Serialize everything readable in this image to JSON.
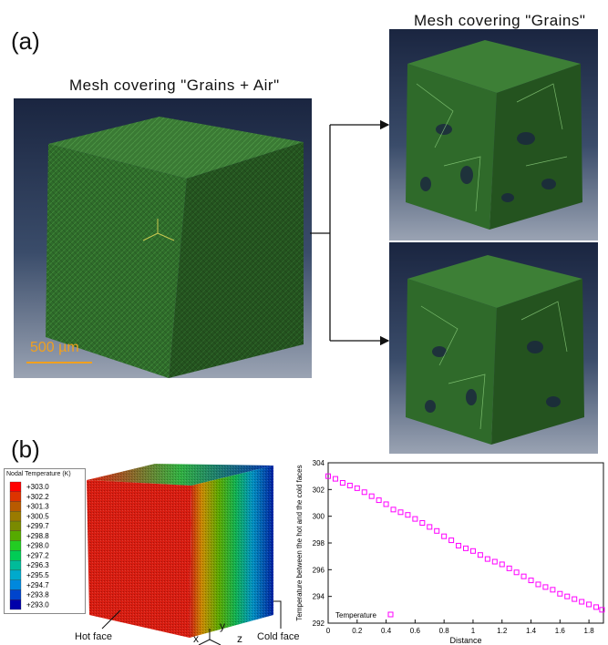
{
  "panel_a": {
    "label": "(a)",
    "left_caption": "Mesh covering \"Grains + Air\"",
    "right_caption": "Mesh covering \"Grains\"",
    "scale_bar": "500 µm",
    "colors": {
      "mesh": "#2e6a2a",
      "scale_bar": "#f0a020"
    }
  },
  "panel_b": {
    "label": "(b)",
    "legend": {
      "title": "Nodal Temperature (K)",
      "entries": [
        "+303.0",
        "+302.2",
        "+301.3",
        "+300.5",
        "+299.7",
        "+298.8",
        "+298.0",
        "+297.2",
        "+296.3",
        "+295.5",
        "+294.7",
        "+293.8",
        "+293.0"
      ],
      "colors": [
        "#ff0000",
        "#dd3300",
        "#b85a00",
        "#9a7a00",
        "#7a8a00",
        "#55aa00",
        "#22cc22",
        "#00cc55",
        "#00bb99",
        "#00aacc",
        "#0088dd",
        "#0044cc",
        "#0000aa"
      ]
    },
    "hot_face": "Hot face",
    "cold_face": "Cold face",
    "axes_labels": {
      "x": "x",
      "y": "y",
      "z": "z"
    }
  },
  "chart_data": {
    "type": "scatter",
    "title": "",
    "xlabel": "Distance",
    "ylabel": "Temperature between the hot and the cold faces",
    "xlim": [
      0,
      1.9
    ],
    "ylim": [
      292,
      304
    ],
    "xticks": [
      0,
      0.2,
      0.4,
      0.6,
      0.8,
      1,
      1.2,
      1.4,
      1.6,
      1.8
    ],
    "yticks": [
      292,
      294,
      296,
      298,
      300,
      302,
      304
    ],
    "legend": "Temperature",
    "legend_position": "bottom-left",
    "marker_color": "#ff00ff",
    "series": [
      {
        "name": "Temperature",
        "x": [
          0,
          0.05,
          0.1,
          0.15,
          0.2,
          0.25,
          0.3,
          0.35,
          0.4,
          0.45,
          0.5,
          0.55,
          0.6,
          0.65,
          0.7,
          0.75,
          0.8,
          0.85,
          0.9,
          0.95,
          1.0,
          1.05,
          1.1,
          1.15,
          1.2,
          1.25,
          1.3,
          1.35,
          1.4,
          1.45,
          1.5,
          1.55,
          1.6,
          1.65,
          1.7,
          1.75,
          1.8,
          1.85,
          1.89
        ],
        "y": [
          303.0,
          302.8,
          302.5,
          302.3,
          302.1,
          301.8,
          301.5,
          301.2,
          300.9,
          300.5,
          300.3,
          300.1,
          299.8,
          299.5,
          299.2,
          298.9,
          298.5,
          298.2,
          297.8,
          297.6,
          297.4,
          297.1,
          296.8,
          296.6,
          296.4,
          296.1,
          295.8,
          295.5,
          295.2,
          294.9,
          294.7,
          294.5,
          294.2,
          294.0,
          293.8,
          293.6,
          293.4,
          293.2,
          293.0
        ]
      }
    ]
  }
}
